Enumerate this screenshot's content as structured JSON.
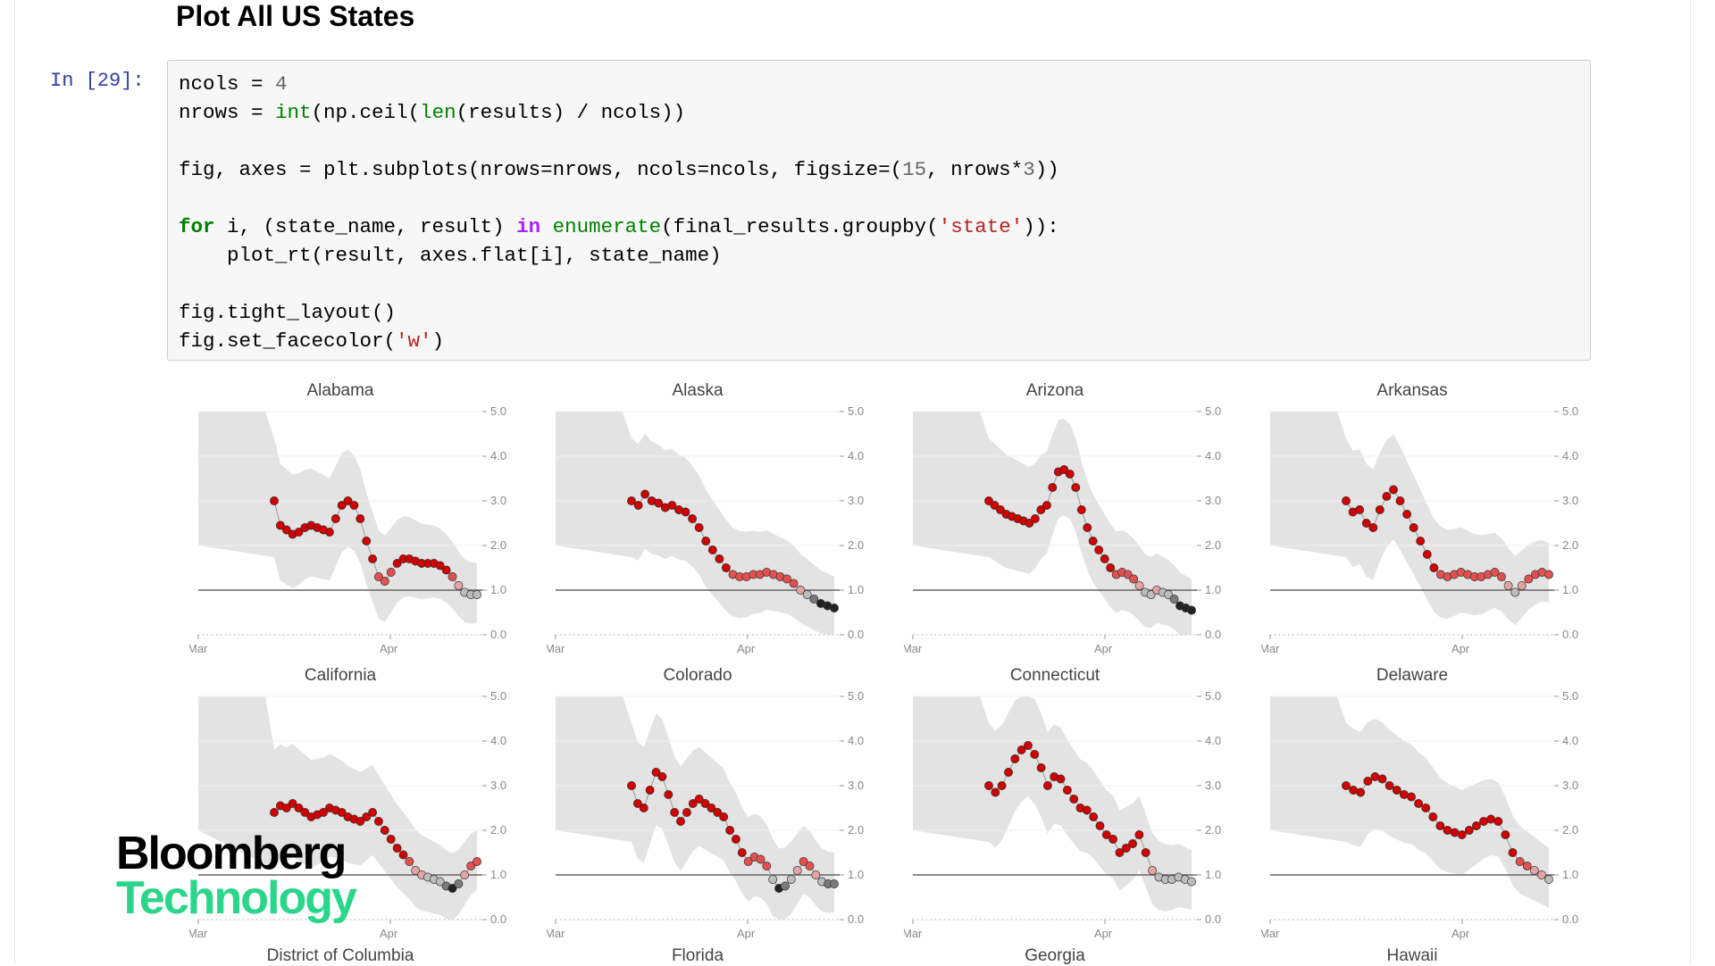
{
  "heading": "Plot All US States",
  "cell": {
    "prompt": "In [29]:",
    "lines": [
      [
        {
          "t": "ncols = ",
          "c": ""
        },
        {
          "t": "4",
          "c": "num"
        }
      ],
      [
        {
          "t": "nrows = ",
          "c": ""
        },
        {
          "t": "int",
          "c": "bi"
        },
        {
          "t": "(np.ceil(",
          "c": ""
        },
        {
          "t": "len",
          "c": "bi"
        },
        {
          "t": "(results) / ncols))",
          "c": ""
        }
      ],
      [],
      [
        {
          "t": "fig, axes = plt.subplots(nrows=nrows, ncols=ncols, figsize=(",
          "c": ""
        },
        {
          "t": "15",
          "c": "num"
        },
        {
          "t": ", nrows*",
          "c": ""
        },
        {
          "t": "3",
          "c": "num"
        },
        {
          "t": "))",
          "c": ""
        }
      ],
      [],
      [
        {
          "t": "for",
          "c": "kw"
        },
        {
          "t": " i, (state_name, result) ",
          "c": ""
        },
        {
          "t": "in",
          "c": "op"
        },
        {
          "t": " ",
          "c": ""
        },
        {
          "t": "enumerate",
          "c": "bi"
        },
        {
          "t": "(final_results.groupby(",
          "c": ""
        },
        {
          "t": "'state'",
          "c": "str"
        },
        {
          "t": ")):",
          "c": ""
        }
      ],
      [
        {
          "t": "    plot_rt(result, axes.flat[i], state_name)",
          "c": ""
        }
      ],
      [],
      [
        {
          "t": "fig.tight_layout()",
          "c": ""
        }
      ],
      [
        {
          "t": "fig.set_facecolor(",
          "c": ""
        },
        {
          "t": "'w'",
          "c": "str"
        },
        {
          "t": ")",
          "c": ""
        }
      ]
    ]
  },
  "logo": {
    "line1": "Bloomberg",
    "line2": "Technology"
  },
  "colors": {
    "band": "#e3e3e3",
    "ref_line": "#666666",
    "high": "#d10000",
    "low": "#222222"
  },
  "chart_data": [
    {
      "type": "scatter",
      "title": "Alabama",
      "x_labels": [
        "Mar",
        "Apr"
      ],
      "yticks": [
        "5.0",
        "4.0",
        "3.0",
        "2.0",
        "1.0",
        "0.0"
      ],
      "ylim": [
        0,
        5
      ],
      "ref_line": 1.0,
      "values": [
        3.0,
        2.45,
        2.35,
        2.25,
        2.3,
        2.4,
        2.45,
        2.4,
        2.35,
        2.3,
        2.6,
        2.9,
        3.0,
        2.9,
        2.6,
        2.1,
        1.7,
        1.3,
        1.2,
        1.4,
        1.6,
        1.7,
        1.7,
        1.65,
        1.6,
        1.6,
        1.6,
        1.55,
        1.45,
        1.3,
        1.1,
        0.95,
        0.9,
        0.9
      ]
    },
    {
      "type": "scatter",
      "title": "Alaska",
      "x_labels": [
        "Mar",
        "Apr"
      ],
      "yticks": [
        "5.0",
        "4.0",
        "3.0",
        "2.0",
        "1.0",
        "0.0"
      ],
      "ylim": [
        0,
        5
      ],
      "ref_line": 1.0,
      "values": [
        3.0,
        2.9,
        3.15,
        3.0,
        2.95,
        2.85,
        2.9,
        2.8,
        2.75,
        2.6,
        2.4,
        2.1,
        1.9,
        1.7,
        1.5,
        1.35,
        1.3,
        1.3,
        1.35,
        1.35,
        1.4,
        1.35,
        1.3,
        1.25,
        1.15,
        1.0,
        0.9,
        0.8,
        0.7,
        0.65,
        0.6
      ]
    },
    {
      "type": "scatter",
      "title": "Arizona",
      "x_labels": [
        "Mar",
        "Apr"
      ],
      "yticks": [
        "5.0",
        "4.0",
        "3.0",
        "2.0",
        "1.0",
        "0.0"
      ],
      "ylim": [
        0,
        5
      ],
      "ref_line": 1.0,
      "values": [
        3.0,
        2.9,
        2.8,
        2.7,
        2.65,
        2.6,
        2.55,
        2.5,
        2.6,
        2.8,
        2.9,
        3.3,
        3.65,
        3.7,
        3.6,
        3.3,
        2.8,
        2.4,
        2.1,
        1.9,
        1.7,
        1.5,
        1.35,
        1.4,
        1.35,
        1.25,
        1.1,
        0.95,
        0.9,
        1.0,
        0.95,
        0.9,
        0.8,
        0.65,
        0.6,
        0.55
      ]
    },
    {
      "type": "scatter",
      "title": "Arkansas",
      "x_labels": [
        "Mar",
        "Apr"
      ],
      "yticks": [
        "5.0",
        "4.0",
        "3.0",
        "2.0",
        "1.0",
        "0.0"
      ],
      "ylim": [
        0,
        5
      ],
      "ref_line": 1.0,
      "values": [
        3.0,
        2.75,
        2.8,
        2.5,
        2.4,
        2.8,
        3.1,
        3.25,
        3.0,
        2.7,
        2.4,
        2.1,
        1.8,
        1.5,
        1.35,
        1.3,
        1.35,
        1.4,
        1.35,
        1.3,
        1.3,
        1.35,
        1.4,
        1.3,
        1.1,
        0.95,
        1.1,
        1.25,
        1.35,
        1.4,
        1.35
      ]
    },
    {
      "type": "scatter",
      "title": "California",
      "x_labels": [
        "Mar",
        "Apr"
      ],
      "yticks": [
        "5.0",
        "4.0",
        "3.0",
        "2.0",
        "1.0",
        "0.0"
      ],
      "ylim": [
        0,
        5
      ],
      "ref_line": 1.0,
      "values": [
        2.4,
        2.55,
        2.5,
        2.6,
        2.5,
        2.4,
        2.3,
        2.35,
        2.4,
        2.5,
        2.45,
        2.4,
        2.3,
        2.25,
        2.2,
        2.3,
        2.4,
        2.2,
        2.0,
        1.8,
        1.6,
        1.45,
        1.3,
        1.1,
        1.0,
        0.95,
        0.9,
        0.85,
        0.75,
        0.7,
        0.8,
        1.0,
        1.2,
        1.3
      ]
    },
    {
      "type": "scatter",
      "title": "Colorado",
      "x_labels": [
        "Mar",
        "Apr"
      ],
      "yticks": [
        "5.0",
        "4.0",
        "3.0",
        "2.0",
        "1.0",
        "0.0"
      ],
      "ylim": [
        0,
        5
      ],
      "ref_line": 1.0,
      "values": [
        3.0,
        2.6,
        2.5,
        2.9,
        3.3,
        3.2,
        2.8,
        2.4,
        2.2,
        2.4,
        2.6,
        2.7,
        2.6,
        2.5,
        2.4,
        2.3,
        2.0,
        1.8,
        1.5,
        1.3,
        1.4,
        1.35,
        1.2,
        0.9,
        0.7,
        0.75,
        0.9,
        1.1,
        1.3,
        1.2,
        1.0,
        0.85,
        0.8,
        0.8
      ]
    },
    {
      "type": "scatter",
      "title": "Connecticut",
      "x_labels": [
        "Mar",
        "Apr"
      ],
      "yticks": [
        "5.0",
        "4.0",
        "3.0",
        "2.0",
        "1.0",
        "0.0"
      ],
      "ylim": [
        0,
        5
      ],
      "ref_line": 1.0,
      "values": [
        3.0,
        2.85,
        3.0,
        3.3,
        3.6,
        3.8,
        3.9,
        3.7,
        3.4,
        3.0,
        3.2,
        3.15,
        2.9,
        2.7,
        2.5,
        2.45,
        2.3,
        2.1,
        1.9,
        1.8,
        1.5,
        1.6,
        1.7,
        1.9,
        1.5,
        1.1,
        0.95,
        0.9,
        0.9,
        0.95,
        0.9,
        0.85
      ]
    },
    {
      "type": "scatter",
      "title": "Delaware",
      "x_labels": [
        "Mar",
        "Apr"
      ],
      "yticks": [
        "5.0",
        "4.0",
        "3.0",
        "2.0",
        "1.0",
        "0.0"
      ],
      "ylim": [
        0,
        5
      ],
      "ref_line": 1.0,
      "values": [
        3.0,
        2.9,
        2.85,
        3.1,
        3.2,
        3.15,
        3.0,
        2.9,
        2.8,
        2.75,
        2.6,
        2.5,
        2.3,
        2.1,
        2.0,
        1.95,
        1.9,
        2.0,
        2.1,
        2.2,
        2.25,
        2.2,
        1.9,
        1.5,
        1.3,
        1.2,
        1.1,
        1.0,
        0.9
      ]
    }
  ],
  "next_row_titles": [
    "District of Columbia",
    "Florida",
    "Georgia",
    "Hawaii"
  ]
}
